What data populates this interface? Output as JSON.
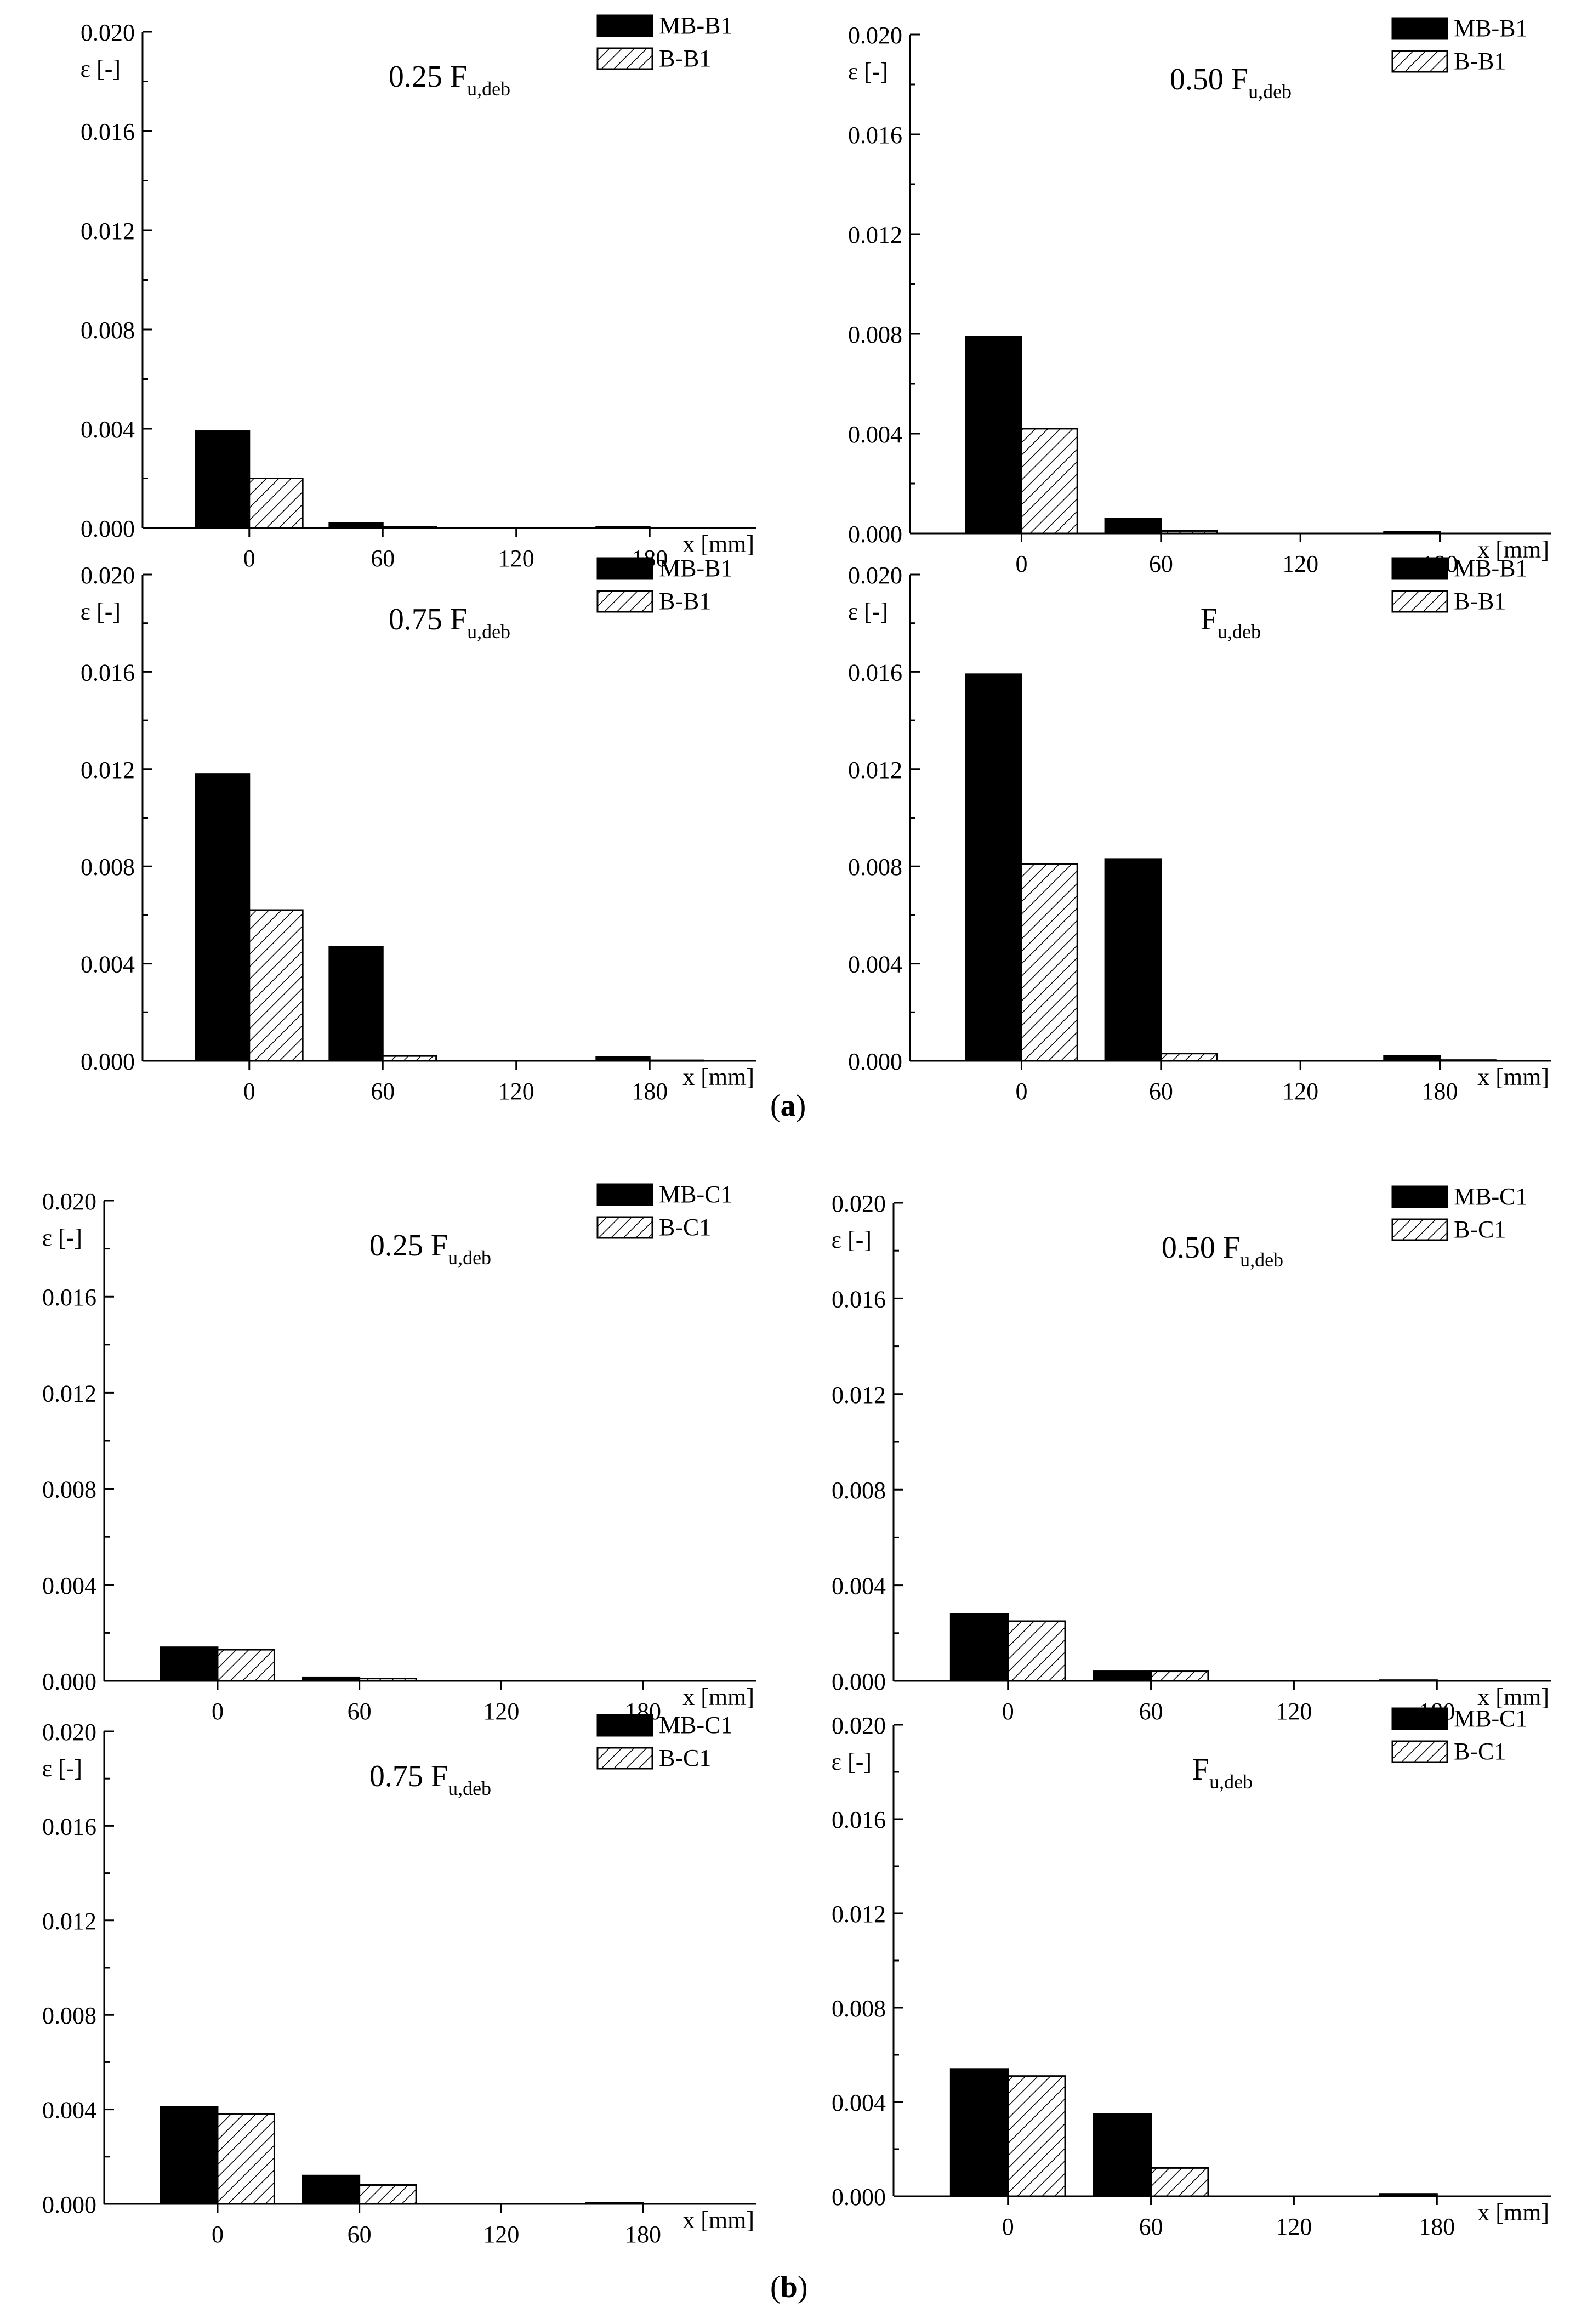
{
  "captions": {
    "a": "a",
    "b": "b"
  },
  "colors": {
    "mb": "#000000",
    "b": "#ffffff",
    "axis": "#000000"
  },
  "chart_data": [
    {
      "id": "a1",
      "type": "bar",
      "group": "a",
      "title_main": "0.25 F",
      "title_sub": "u,deb",
      "ylabel": "ε [-]",
      "xlabel": "x [mm]",
      "ylim": [
        0,
        0.02
      ],
      "yticks": [
        "0.000",
        "0.004",
        "0.008",
        "0.012",
        "0.016",
        "0.020"
      ],
      "categories": [
        "0",
        "60",
        "120",
        "180"
      ],
      "series": [
        {
          "name": "MB-B1",
          "values": [
            0.0039,
            0.0002,
            0.0,
            5e-05
          ]
        },
        {
          "name": "B-B1",
          "values": [
            0.002,
            5e-05,
            0.0,
            0.0
          ]
        }
      ]
    },
    {
      "id": "a2",
      "type": "bar",
      "group": "a",
      "title_main": "0.50 F",
      "title_sub": "u,deb",
      "ylabel": "ε [-]",
      "xlabel": "x [mm]",
      "ylim": [
        0,
        0.02
      ],
      "yticks": [
        "0.000",
        "0.004",
        "0.008",
        "0.012",
        "0.016",
        "0.020"
      ],
      "categories": [
        "0",
        "60",
        "120",
        "180"
      ],
      "series": [
        {
          "name": "MB-B1",
          "values": [
            0.0079,
            0.0006,
            0.0,
            7e-05
          ]
        },
        {
          "name": "B-B1",
          "values": [
            0.0042,
            0.0001,
            0.0,
            0.0
          ]
        }
      ]
    },
    {
      "id": "a3",
      "type": "bar",
      "group": "a",
      "title_main": "0.75 F",
      "title_sub": "u,deb",
      "ylabel": "ε [-]",
      "xlabel": "x [mm]",
      "ylim": [
        0,
        0.02
      ],
      "yticks": [
        "0.000",
        "0.004",
        "0.008",
        "0.012",
        "0.016",
        "0.020"
      ],
      "categories": [
        "0",
        "60",
        "120",
        "180"
      ],
      "series": [
        {
          "name": "MB-B1",
          "values": [
            0.0118,
            0.0047,
            0.0,
            0.00015
          ]
        },
        {
          "name": "B-B1",
          "values": [
            0.0062,
            0.0002,
            0.0,
            2e-05
          ]
        }
      ]
    },
    {
      "id": "a4",
      "type": "bar",
      "group": "a",
      "title_main": "F",
      "title_sub": "u,deb",
      "ylabel": "ε [-]",
      "xlabel": "x [mm]",
      "ylim": [
        0,
        0.02
      ],
      "yticks": [
        "0.000",
        "0.004",
        "0.008",
        "0.012",
        "0.016",
        "0.020"
      ],
      "categories": [
        "0",
        "60",
        "120",
        "180"
      ],
      "series": [
        {
          "name": "MB-B1",
          "values": [
            0.0159,
            0.0083,
            0.0,
            0.0002
          ]
        },
        {
          "name": "B-B1",
          "values": [
            0.0081,
            0.0003,
            0.0,
            3e-05
          ]
        }
      ]
    },
    {
      "id": "b1",
      "type": "bar",
      "group": "b",
      "title_main": "0.25 F",
      "title_sub": "u,deb",
      "ylabel": "ε [-]",
      "xlabel": "x [mm]",
      "ylim": [
        0,
        0.02
      ],
      "yticks": [
        "0.000",
        "0.004",
        "0.008",
        "0.012",
        "0.016",
        "0.020"
      ],
      "categories": [
        "0",
        "60",
        "120",
        "180"
      ],
      "series": [
        {
          "name": "MB-C1",
          "values": [
            0.0014,
            0.00015,
            0.0,
            0.0
          ]
        },
        {
          "name": "B-C1",
          "values": [
            0.0013,
            0.0001,
            0.0,
            0.0
          ]
        }
      ]
    },
    {
      "id": "b2",
      "type": "bar",
      "group": "b",
      "title_main": "0.50 F",
      "title_sub": "u,deb",
      "ylabel": "ε [-]",
      "xlabel": "x [mm]",
      "ylim": [
        0,
        0.02
      ],
      "yticks": [
        "0.000",
        "0.004",
        "0.008",
        "0.012",
        "0.016",
        "0.020"
      ],
      "categories": [
        "0",
        "60",
        "120",
        "180"
      ],
      "series": [
        {
          "name": "MB-C1",
          "values": [
            0.0028,
            0.0004,
            0.0,
            3e-05
          ]
        },
        {
          "name": "B-C1",
          "values": [
            0.0025,
            0.0004,
            0.0,
            0.0
          ]
        }
      ]
    },
    {
      "id": "b3",
      "type": "bar",
      "group": "b",
      "title_main": "0.75 F",
      "title_sub": "u,deb",
      "ylabel": "ε [-]",
      "xlabel": "x [mm]",
      "ylim": [
        0,
        0.02
      ],
      "yticks": [
        "0.000",
        "0.004",
        "0.008",
        "0.012",
        "0.016",
        "0.020"
      ],
      "categories": [
        "0",
        "60",
        "120",
        "180"
      ],
      "series": [
        {
          "name": "MB-C1",
          "values": [
            0.0041,
            0.0012,
            0.0,
            5e-05
          ]
        },
        {
          "name": "B-C1",
          "values": [
            0.0038,
            0.0008,
            0.0,
            0.0
          ]
        }
      ]
    },
    {
      "id": "b4",
      "type": "bar",
      "group": "b",
      "title_main": "F",
      "title_sub": "u,deb",
      "ylabel": "ε [-]",
      "xlabel": "x [mm]",
      "ylim": [
        0,
        0.02
      ],
      "yticks": [
        "0.000",
        "0.004",
        "0.008",
        "0.012",
        "0.016",
        "0.020"
      ],
      "categories": [
        "0",
        "60",
        "120",
        "180"
      ],
      "series": [
        {
          "name": "MB-C1",
          "values": [
            0.0054,
            0.0035,
            0.0,
            0.0001
          ]
        },
        {
          "name": "B-C1",
          "values": [
            0.0051,
            0.0012,
            0.0,
            0.0
          ]
        }
      ]
    }
  ]
}
